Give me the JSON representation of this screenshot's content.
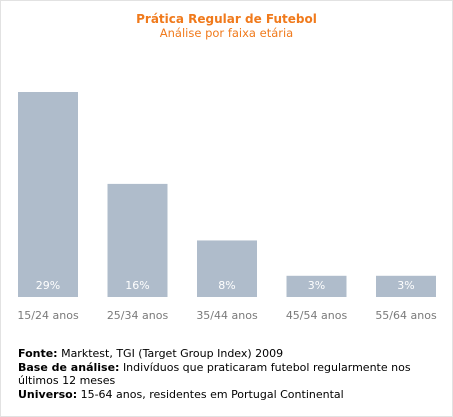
{
  "chart_data": {
    "type": "bar",
    "title": "Prática Regular de Futebol",
    "subtitle": "Análise por faixa etária",
    "categories": [
      "15/24 anos",
      "25/34 anos",
      "35/44 anos",
      "45/54 anos",
      "55/64 anos"
    ],
    "values": [
      29,
      16,
      8,
      3,
      3
    ],
    "value_labels": [
      "29%",
      "16%",
      "8%",
      "3%",
      "3%"
    ],
    "ylim": [
      0,
      29
    ],
    "bar_color": "#afbccb",
    "value_label_color": "#ffffff",
    "tick_label_color": "#7a7a7a",
    "title_color": "#f07a1c",
    "grid": false
  },
  "notes": {
    "fonte_key": "Fonte:",
    "fonte_value": "Marktest, TGI (Target Group Index) 2009",
    "base_key": "Base de análise:",
    "base_value": "Indivíduos que praticaram futebol regularmente nos últimos 12 meses",
    "universo_key": "Universo:",
    "universo_value": "15-64 anos, residentes em Portugal Continental"
  }
}
